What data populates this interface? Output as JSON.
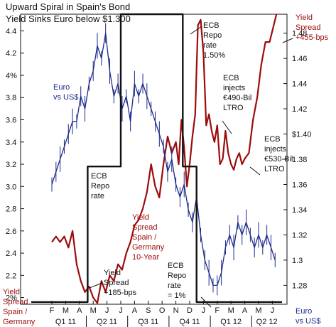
{
  "chart_data": {
    "type": "line",
    "title_lines": [
      "Upward Spiral in Spain's Bond",
      "Yield Sinks Euro below $1.300"
    ],
    "x_months": [
      "F",
      "M",
      "A",
      "M",
      "J",
      "J",
      "A",
      "S",
      "O",
      "N",
      "D",
      "J",
      "F",
      "M",
      "A",
      "M",
      "J"
    ],
    "x_quarters": [
      "Q1 11",
      "Q2 11",
      "Q3 11",
      "Q4 11",
      "Q1 12",
      "Q2 12"
    ],
    "left_axis": {
      "ticks": [
        "2%",
        "2.2",
        "2.4",
        "2.6",
        "2.8",
        "3.0",
        "3.2",
        "3.4",
        "3.6",
        "3.8",
        "4%",
        "4.2",
        "4.4"
      ],
      "range": [
        1.94,
        4.55
      ]
    },
    "right_axis": {
      "ticks": [
        "1.28",
        "1.3",
        "1.32",
        "1.34",
        "1.36",
        "1.38",
        "$1.40",
        "1.42",
        "1.44",
        "1.46",
        "1.48"
      ],
      "range": [
        1.265,
        1.495
      ]
    },
    "legend_labels": {
      "spread": [
        "Yield",
        "Spread",
        "Spain /",
        "Germany"
      ],
      "euro": [
        "Euro",
        "vs US$"
      ]
    },
    "annotations": {
      "euro_vs_usd": [
        "Euro",
        "vs US$"
      ],
      "ecb_rate_150": [
        "ECB",
        "Repo",
        "rate",
        "1.50%"
      ],
      "ecb_490": [
        "ECB",
        "injects",
        "€490-Bil",
        "LTRO"
      ],
      "ecb_530": [
        "ECB",
        "injects",
        "€530-Bil",
        "LTRO"
      ],
      "ecb_repo_rate": [
        "ECB",
        "Repo",
        "rate"
      ],
      "spread_10yr": [
        "Yield",
        "Spread",
        "Spain /",
        "Germany",
        "10-Year"
      ],
      "spread_185": [
        "Yield",
        "Spread",
        "+185-bps"
      ],
      "ecb_rate_1": [
        "ECB",
        "Repo",
        "rate",
        "= 1%"
      ],
      "spread_455": [
        "Yield",
        "Spread",
        "+455-bps"
      ]
    },
    "series": [
      {
        "name": "Yield Spread Spain / Germany 10-Year",
        "axis": "left",
        "color": "#9b0c0c",
        "x": [
          0,
          0.3,
          0.6,
          0.9,
          1.2,
          1.5,
          1.8,
          2.1,
          2.4,
          2.7,
          3.0,
          3.3,
          3.6,
          3.9,
          4.2,
          4.5,
          4.8,
          5.1,
          5.4,
          5.7,
          6.0,
          6.3,
          6.6,
          6.9,
          7.2,
          7.5,
          7.8,
          8.1,
          8.4,
          8.7,
          9.0,
          9.2,
          9.4,
          9.6,
          9.8,
          10.0,
          10.2,
          10.4,
          10.6,
          10.8,
          11.0,
          11.2,
          11.4,
          11.6,
          11.8,
          12.0,
          12.2,
          12.4,
          12.6,
          12.8,
          13.0,
          13.2,
          13.4,
          13.6,
          13.8,
          14.0,
          14.3,
          14.6,
          14.9,
          15.2,
          15.5,
          15.8,
          16.1,
          16.3
        ],
        "y": [
          2.5,
          2.55,
          2.5,
          2.55,
          2.45,
          2.6,
          2.3,
          2.15,
          2.05,
          2.1,
          2.0,
          1.95,
          2.15,
          2.05,
          2.2,
          2.15,
          2.3,
          2.25,
          2.4,
          2.5,
          2.65,
          2.7,
          2.8,
          2.95,
          3.2,
          3.0,
          2.9,
          3.2,
          3.45,
          3.3,
          3.4,
          3.2,
          3.6,
          3.35,
          3.0,
          3.2,
          3.45,
          3.65,
          4.45,
          4.5,
          4.2,
          3.55,
          3.65,
          3.5,
          3.4,
          3.55,
          3.2,
          3.25,
          3.5,
          3.3,
          3.2,
          3.15,
          3.25,
          3.3,
          3.2,
          3.25,
          3.3,
          3.6,
          3.8,
          4.1,
          4.3,
          4.3,
          4.45,
          4.55
        ]
      },
      {
        "name": "Euro vs US$",
        "axis": "right",
        "color": "#1c2a8c",
        "x": [
          0,
          0.3,
          0.6,
          0.9,
          1.2,
          1.5,
          1.8,
          2.1,
          2.4,
          2.7,
          3.0,
          3.3,
          3.6,
          3.9,
          4.2,
          4.5,
          4.8,
          5.1,
          5.4,
          5.7,
          6.0,
          6.3,
          6.6,
          6.9,
          7.2,
          7.5,
          7.8,
          8.1,
          8.4,
          8.7,
          9.0,
          9.3,
          9.6,
          9.9,
          10.2,
          10.5,
          10.8,
          11.1,
          11.4,
          11.7,
          12.0,
          12.3,
          12.6,
          12.9,
          13.2,
          13.5,
          13.8,
          14.1,
          14.4,
          14.7,
          15.0,
          15.3,
          15.6,
          15.9,
          16.2
        ],
        "y": [
          1.36,
          1.37,
          1.38,
          1.39,
          1.4,
          1.41,
          1.41,
          1.43,
          1.42,
          1.44,
          1.45,
          1.47,
          1.46,
          1.48,
          1.45,
          1.43,
          1.44,
          1.42,
          1.43,
          1.41,
          1.44,
          1.43,
          1.44,
          1.43,
          1.42,
          1.41,
          1.4,
          1.39,
          1.37,
          1.38,
          1.36,
          1.35,
          1.36,
          1.34,
          1.33,
          1.35,
          1.32,
          1.3,
          1.29,
          1.28,
          1.28,
          1.29,
          1.31,
          1.32,
          1.31,
          1.33,
          1.32,
          1.33,
          1.32,
          1.31,
          1.32,
          1.31,
          1.32,
          1.31,
          1.3
        ]
      },
      {
        "name": "ECB Repo rate",
        "axis": "left",
        "color": "#111111",
        "x": [
          -1.5,
          2.6,
          2.6,
          5.0,
          5.0,
          9.5,
          9.5,
          10.5,
          10.5,
          16.7
        ],
        "y": [
          1.96,
          1.96,
          3.18,
          3.18,
          4.55,
          4.55,
          3.18,
          3.18,
          1.96,
          1.96
        ]
      }
    ]
  }
}
